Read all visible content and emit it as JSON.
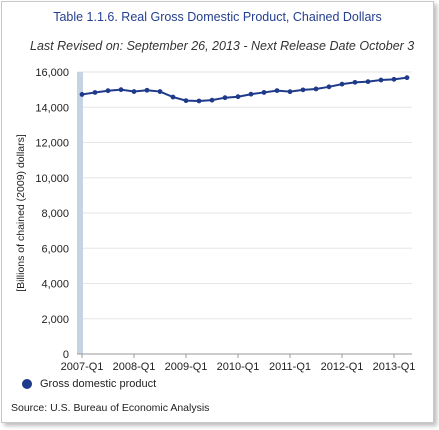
{
  "title": "Table 1.1.6. Real Gross Domestic Product, Chained Dollars",
  "subtitle": "Last Revised on: September 26, 2013 - Next Release Date October 3",
  "source": "Source: U.S. Bureau of Economic Analysis",
  "colors": {
    "series": "#1f3a8a",
    "highlight_band": "#c5d3e2",
    "grid": "#e6e6e6",
    "title": "#243f8f"
  },
  "chart_data": {
    "type": "line",
    "title": "Table 1.1.6. Real Gross Domestic Product, Chained Dollars",
    "xlabel": "",
    "ylabel": "[Billions of chained (2009) dollars]",
    "ylim": [
      0,
      16000
    ],
    "yticks": [
      "0",
      "2,000",
      "4,000",
      "6,000",
      "8,000",
      "10,000",
      "12,000",
      "14,000",
      "16,000"
    ],
    "xticks": [
      "2007-Q1",
      "2008-Q1",
      "2009-Q1",
      "2010-Q1",
      "2011-Q1",
      "2012-Q1",
      "2013-Q1"
    ],
    "x": [
      "2007-Q1",
      "2007-Q2",
      "2007-Q3",
      "2007-Q4",
      "2008-Q1",
      "2008-Q2",
      "2008-Q3",
      "2008-Q4",
      "2009-Q1",
      "2009-Q2",
      "2009-Q3",
      "2009-Q4",
      "2010-Q1",
      "2010-Q2",
      "2010-Q3",
      "2010-Q4",
      "2011-Q1",
      "2011-Q2",
      "2011-Q3",
      "2011-Q4",
      "2012-Q1",
      "2012-Q2",
      "2012-Q3",
      "2012-Q4",
      "2013-Q1",
      "2013-Q2"
    ],
    "series": [
      {
        "name": "Gross domestic product",
        "values": [
          14727,
          14839,
          14939,
          14998,
          14891,
          14964,
          14891,
          14577,
          14375,
          14356,
          14403,
          14542,
          14598,
          14740,
          14840,
          14944,
          14885,
          14987,
          15038,
          15160,
          15311,
          15413,
          15452,
          15544,
          15584,
          15680
        ]
      }
    ],
    "grid": true,
    "legend_position": "bottom-left"
  }
}
